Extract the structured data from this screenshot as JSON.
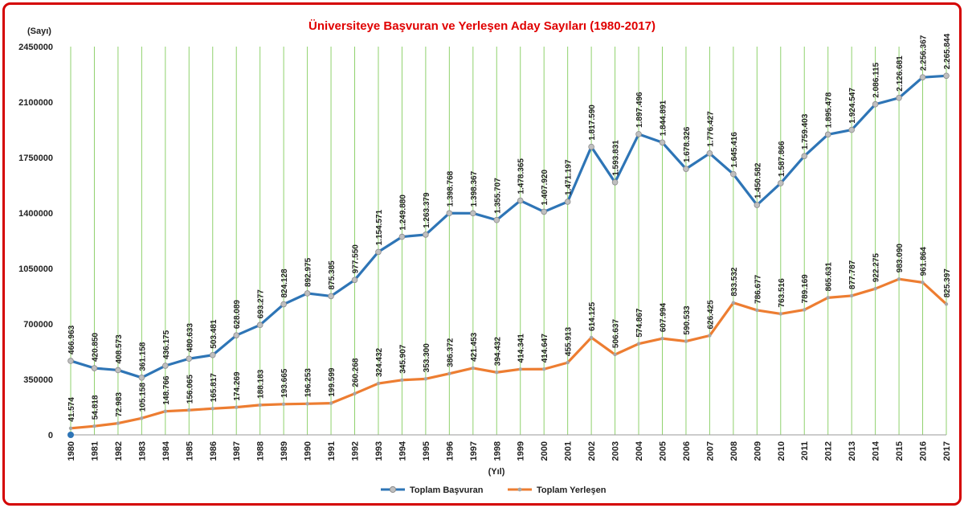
{
  "chart_data": {
    "type": "line",
    "title": "Üniversiteye Başvuran ve Yerleşen Aday Sayıları (1980-2017)",
    "ylabel": "(Sayı)",
    "xlabel": "(Yıl)",
    "ylim": [
      0,
      2450000
    ],
    "yticks": [
      0,
      350000,
      700000,
      1050000,
      1400000,
      1750000,
      2100000,
      2450000
    ],
    "ytick_labels": [
      "0",
      "350000",
      "700000",
      "1050000",
      "1400000",
      "1750000",
      "2100000",
      "2450000"
    ],
    "grid": "vertical",
    "legend_position": "bottom",
    "categories": [
      "1980",
      "1981",
      "1982",
      "1983",
      "1984",
      "1985",
      "1986",
      "1987",
      "1988",
      "1989",
      "1990",
      "1991",
      "1992",
      "1993",
      "1994",
      "1995",
      "1996",
      "1997",
      "1998",
      "1999",
      "2000",
      "2001",
      "2002",
      "2003",
      "2004",
      "2005",
      "2006",
      "2007",
      "2008",
      "2009",
      "2010",
      "2011",
      "2012",
      "2013",
      "2014",
      "2015",
      "2016",
      "2017"
    ],
    "series": [
      {
        "name": "Toplam Başvuran",
        "color": "#2e75b6",
        "values": [
          466963,
          420850,
          408573,
          361158,
          436175,
          480633,
          503481,
          628089,
          693277,
          824128,
          892975,
          875385,
          977550,
          1154571,
          1249880,
          1263379,
          1398768,
          1398367,
          1355707,
          1478365,
          1407920,
          1471197,
          1817590,
          1593831,
          1897496,
          1844891,
          1678326,
          1776427,
          1645416,
          1450582,
          1587866,
          1759403,
          1895478,
          1924547,
          2086115,
          2126681,
          2256367,
          2265844
        ],
        "labels": [
          "466.963",
          "420.850",
          "408.573",
          "361.158",
          "436.175",
          "480.633",
          "503.481",
          "628.089",
          "693.277",
          "824.128",
          "892.975",
          "875.385",
          "977.550",
          "1.154.571",
          "1.249.880",
          "1.263.379",
          "1.398.768",
          "1.398.367",
          "1.355.707",
          "1.478.365",
          "1.407.920",
          "1.471.197",
          "1.817.590",
          "1.593.831",
          "1.897.496",
          "1.844.891",
          "1.678.326",
          "1.776.427",
          "1.645.416",
          "1.450.582",
          "1.587.866",
          "1.759.403",
          "1.895.478",
          "1.924.547",
          "2.086.115",
          "2.126.681",
          "2.256.367",
          "2.265.844"
        ]
      },
      {
        "name": "Toplam Yerleşen",
        "color": "#ed7d31",
        "values": [
          41574,
          54818,
          72983,
          105158,
          148766,
          156065,
          165817,
          174269,
          188183,
          193665,
          196253,
          199599,
          260268,
          324432,
          345907,
          353300,
          386372,
          421453,
          394432,
          414341,
          414647,
          455913,
          614125,
          506637,
          574867,
          607994,
          590533,
          626425,
          833532,
          786677,
          763516,
          789169,
          865631,
          877787,
          922275,
          983090,
          961864,
          825397
        ],
        "labels": [
          "41.574",
          "54.818",
          "72.983",
          "105.158",
          "148.766",
          "156.065",
          "165.817",
          "174.269",
          "188.183",
          "193.665",
          "196.253",
          "199.599",
          "260.268",
          "324.432",
          "345.907",
          "353.300",
          "386.372",
          "421.453",
          "394.432",
          "414.341",
          "414.647",
          "455.913",
          "614.125",
          "506.637",
          "574.867",
          "607.994",
          "590.533",
          "626.425",
          "833.532",
          "786.677",
          "763.516",
          "789.169",
          "865.631",
          "877.787",
          "922.275",
          "983.090",
          "961.864",
          "825.397"
        ]
      }
    ]
  }
}
